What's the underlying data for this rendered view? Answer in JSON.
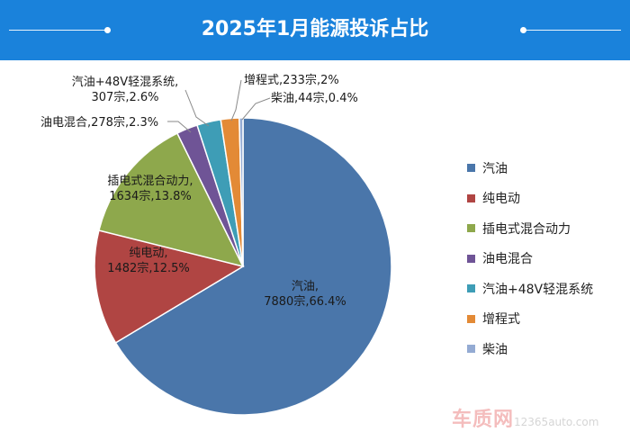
{
  "chart_data": {
    "type": "pie",
    "title": "2025年1月能源投诉占比",
    "slices": [
      {
        "name": "汽油",
        "count": "7880宗",
        "value": 66.4,
        "percent": "66.4%",
        "color": "#4a76aa"
      },
      {
        "name": "纯电动",
        "count": "1482宗",
        "value": 12.5,
        "percent": "12.5%",
        "color": "#b04543"
      },
      {
        "name": "插电式混合动力",
        "count": "1634宗",
        "value": 13.8,
        "percent": "13.8%",
        "color": "#8ea84c"
      },
      {
        "name": "油电混合",
        "count": "278宗",
        "value": 2.3,
        "percent": "2.3%",
        "color": "#6f5496"
      },
      {
        "name": "汽油+48V轻混系统",
        "count": "307宗",
        "value": 2.6,
        "percent": "2.6%",
        "color": "#3e9db6"
      },
      {
        "name": "增程式",
        "count": "233宗",
        "value": 2.0,
        "percent": "2%",
        "color": "#e38a36"
      },
      {
        "name": "柴油",
        "count": "44宗",
        "value": 0.4,
        "percent": "0.4%",
        "color": "#94abd3"
      }
    ],
    "legend_position": "right"
  },
  "watermark": {
    "brand": "车质网",
    "url": "12365auto.com"
  }
}
